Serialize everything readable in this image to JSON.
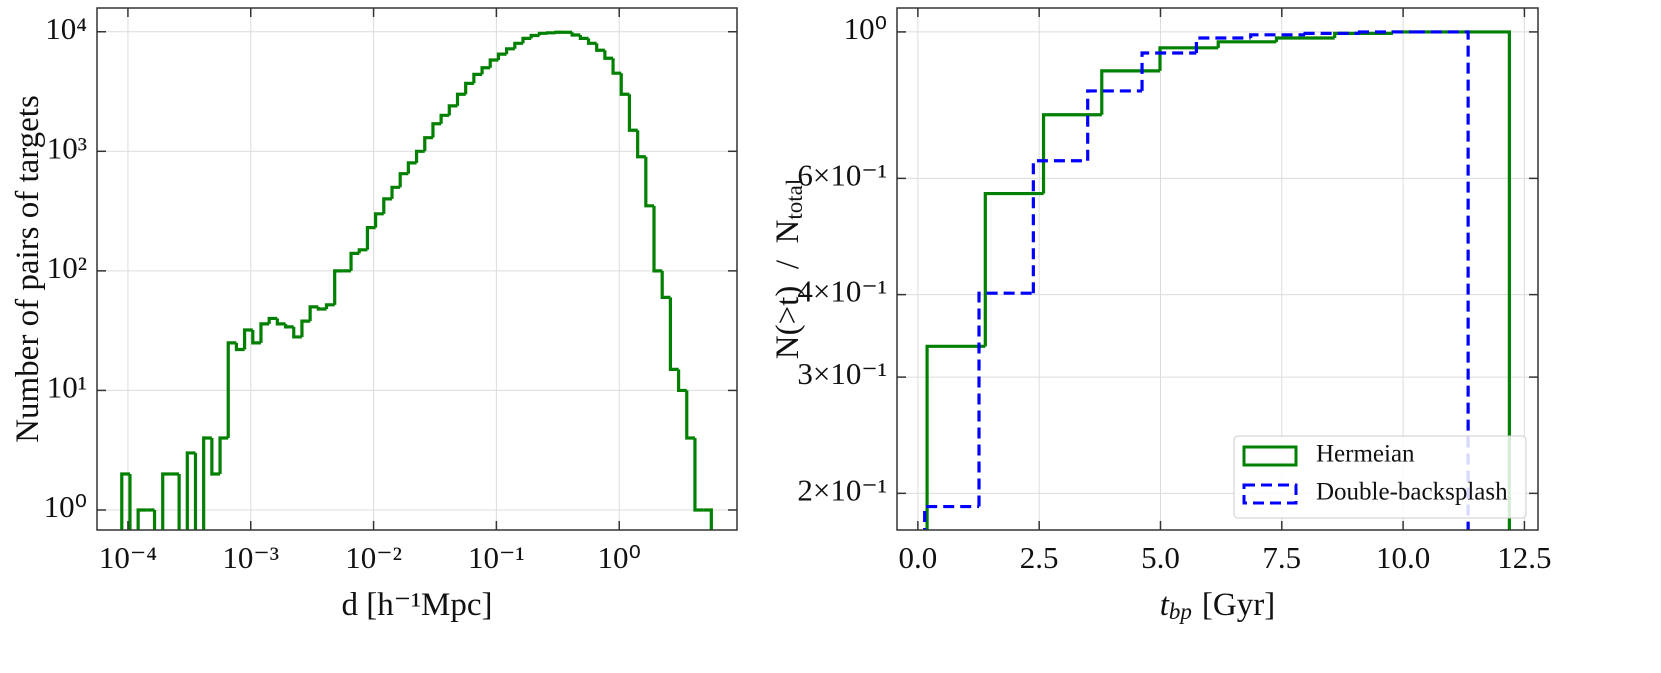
{
  "chart_data": [
    {
      "type": "histogram",
      "xscale": "log",
      "yscale": "log",
      "grid": true,
      "color": "#008000",
      "xlabel": "d [h⁻¹Mpc]",
      "ylabel": "Number of pairs of targets",
      "xlim": [
        5.6e-05,
        9.1
      ],
      "ylim": [
        0.68,
        15800
      ],
      "xticks": [
        {
          "value": 0.0001,
          "label": "10⁻⁴"
        },
        {
          "value": 0.001,
          "label": "10⁻³"
        },
        {
          "value": 0.01,
          "label": "10⁻²"
        },
        {
          "value": 0.1,
          "label": "10⁻¹"
        },
        {
          "value": 1,
          "label": "10⁰"
        }
      ],
      "yticks": [
        {
          "value": 1,
          "label": "10⁰"
        },
        {
          "value": 10,
          "label": "10¹"
        },
        {
          "value": 100,
          "label": "10²"
        },
        {
          "value": 1000,
          "label": "10³"
        },
        {
          "value": 10000,
          "label": "10⁴"
        }
      ],
      "bins": [
        8.91e-05,
        0.0001039,
        0.0001211,
        0.0001413,
        0.0001647,
        0.000192,
        0.0002239,
        0.0002611,
        0.0003044,
        0.0003548,
        0.0004137,
        0.0004824,
        0.0005624,
        0.0006556,
        0.0007645,
        0.000891,
        0.001039,
        0.001211,
        0.001413,
        0.001647,
        0.00192,
        0.002239,
        0.002611,
        0.003044,
        0.003548,
        0.004137,
        0.004824,
        0.005624,
        0.006556,
        0.007645,
        0.00891,
        0.01039,
        0.01211,
        0.01413,
        0.01647,
        0.0192,
        0.02239,
        0.02611,
        0.03044,
        0.03548,
        0.04137,
        0.04824,
        0.05624,
        0.06556,
        0.07645,
        0.0891,
        0.1039,
        0.1211,
        0.1413,
        0.1647,
        0.192,
        0.2239,
        0.2611,
        0.3044,
        0.3548,
        0.4137,
        0.4824,
        0.5624,
        0.6556,
        0.7645,
        0.891,
        1.039,
        1.211,
        1.413,
        1.647,
        1.92,
        2.239,
        2.611,
        3.044,
        3.548,
        4.137,
        4.824,
        5.624
      ],
      "values": [
        2,
        0,
        1,
        1,
        0,
        2,
        2,
        0,
        3,
        0,
        4,
        2,
        4,
        25,
        22,
        32,
        25,
        36,
        40,
        36,
        34,
        28,
        38,
        50,
        48,
        52,
        100,
        100,
        140,
        150,
        230,
        300,
        400,
        500,
        650,
        800,
        1000,
        1300,
        1700,
        2000,
        2400,
        3000,
        3700,
        4400,
        5000,
        5800,
        6500,
        7200,
        8000,
        8800,
        9300,
        9700,
        9800,
        9900,
        9900,
        9400,
        8800,
        8000,
        7000,
        6000,
        4500,
        3000,
        1500,
        900,
        350,
        100,
        60,
        15,
        10,
        4,
        1,
        1
      ]
    },
    {
      "type": "histogram",
      "yscale": "log",
      "grid": true,
      "legend": "lower right",
      "xlabel_var": "t",
      "xlabel_sub": "bp",
      "xlabel": "[Gyr]",
      "ylabel": "N(>t)  /  N",
      "ylabel_sub": "total",
      "xlim": [
        -0.43,
        12.78
      ],
      "ylim": [
        0.176,
        1.087
      ],
      "xticks": [
        {
          "value": 0,
          "label": "0.0"
        },
        2.5,
        {
          "value": 5,
          "label": "5.0"
        },
        7.5,
        {
          "value": 10,
          "label": "10.0"
        },
        12.5
      ],
      "yticks": [
        {
          "value": 1,
          "label": "10⁰"
        },
        {
          "value": 0.6,
          "label": "6×10⁻¹"
        },
        {
          "value": 0.4,
          "label": "4×10⁻¹"
        },
        {
          "value": 0.3,
          "label": "3×10⁻¹"
        },
        {
          "value": 0.2,
          "label": "2×10⁻¹"
        }
      ],
      "series": [
        {
          "name": "Hermeian",
          "color": "#008000",
          "linestyle": "solid",
          "bins": [
            0.19,
            1.39,
            2.59,
            3.79,
            4.99,
            6.19,
            7.39,
            8.59,
            9.79,
            10.99,
            12.19
          ],
          "values": [
            0.334,
            0.569,
            0.749,
            0.873,
            0.946,
            0.966,
            0.979,
            0.995,
            1.0,
            1.0
          ]
        },
        {
          "name": "Double-backsplash",
          "color": "#0000ff",
          "linestyle": "dashed",
          "bins": [
            0.14,
            1.26,
            2.38,
            3.5,
            4.62,
            5.74,
            6.86,
            7.98,
            9.1,
            10.22,
            11.34
          ],
          "values": [
            0.191,
            0.402,
            0.638,
            0.814,
            0.929,
            0.979,
            0.99,
            0.995,
            1.0,
            1.0
          ]
        }
      ]
    }
  ]
}
